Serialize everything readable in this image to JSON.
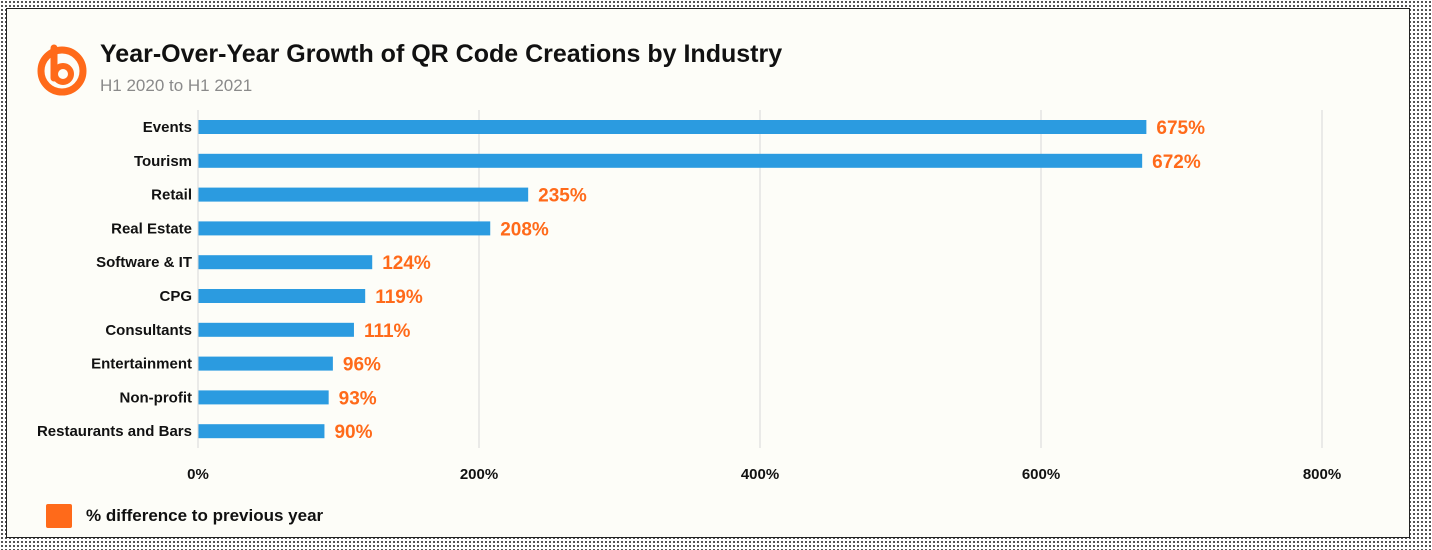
{
  "brand": {
    "logo_icon": "bitly-logo-icon",
    "accent_color": "#ff6a1a"
  },
  "chart_data": {
    "type": "bar",
    "orientation": "horizontal",
    "title": "Year-Over-Year Growth of QR Code Creations by Industry",
    "subtitle": "H1 2020 to H1 2021",
    "categories": [
      "Events",
      "Tourism",
      "Retail",
      "Real Estate",
      "Software & IT",
      "CPG",
      "Consultants",
      "Entertainment",
      "Non-profit",
      "Restaurants and Bars"
    ],
    "values": [
      675,
      672,
      235,
      208,
      124,
      119,
      111,
      96,
      93,
      90
    ],
    "value_labels": [
      "675%",
      "672%",
      "235%",
      "208%",
      "124%",
      "119%",
      "111%",
      "96%",
      "93%",
      "90%"
    ],
    "xlim": [
      0,
      800
    ],
    "xticks": [
      0,
      200,
      400,
      600,
      800
    ],
    "xtick_labels": [
      "0%",
      "200%",
      "400%",
      "600%",
      "800%"
    ],
    "grid": true,
    "bar_color": "#2b9be0",
    "label_color": "#ff6a1a",
    "legend": {
      "position": "bottom-left",
      "label": "% difference to previous year",
      "color": "#ff6a1a"
    }
  }
}
